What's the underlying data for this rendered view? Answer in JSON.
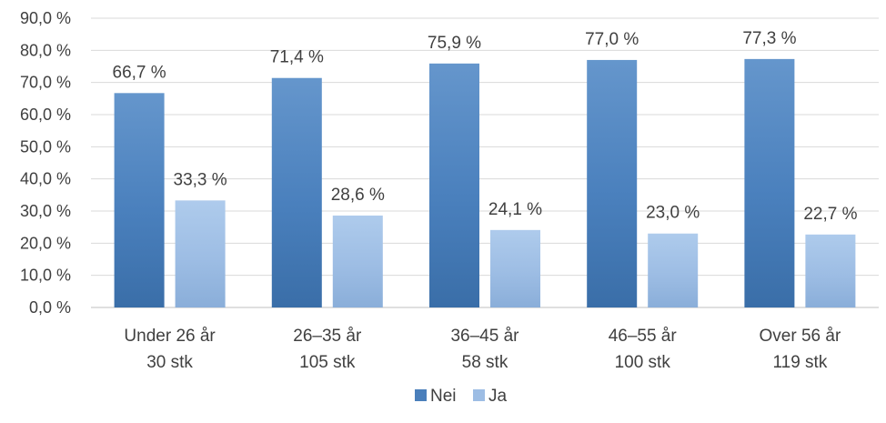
{
  "chart_data": {
    "type": "bar",
    "title": "",
    "xlabel": "",
    "ylabel": "",
    "ylim": [
      0,
      90
    ],
    "y_ticks": [
      "0,0 %",
      "10,0 %",
      "20,0 %",
      "30,0 %",
      "40,0 %",
      "50,0 %",
      "60,0 %",
      "70,0 %",
      "80,0 %",
      "90,0 %"
    ],
    "grid": true,
    "legend_position": "bottom",
    "categories": [
      {
        "line1": "Under 26 år",
        "line2": "30 stk"
      },
      {
        "line1": "26–35 år",
        "line2": "105 stk"
      },
      {
        "line1": "36–45 år",
        "line2": "58 stk"
      },
      {
        "line1": "46–55 år",
        "line2": "100 stk"
      },
      {
        "line1": "Over 56 år",
        "line2": "119 stk"
      }
    ],
    "series": [
      {
        "name": "Nei",
        "color": "#4a7fbb",
        "values": [
          66.7,
          71.4,
          75.9,
          77.0,
          77.3
        ],
        "labels": [
          "66,7 %",
          "71,4 %",
          "75,9 %",
          "77,0 %",
          "77,3 %"
        ]
      },
      {
        "name": "Ja",
        "color": "#9dbde4",
        "values": [
          33.3,
          28.6,
          24.1,
          23.0,
          22.7
        ],
        "labels": [
          "33,3 %",
          "28,6 %",
          "24,1 %",
          "23,0 %",
          "22,7 %"
        ]
      }
    ]
  }
}
